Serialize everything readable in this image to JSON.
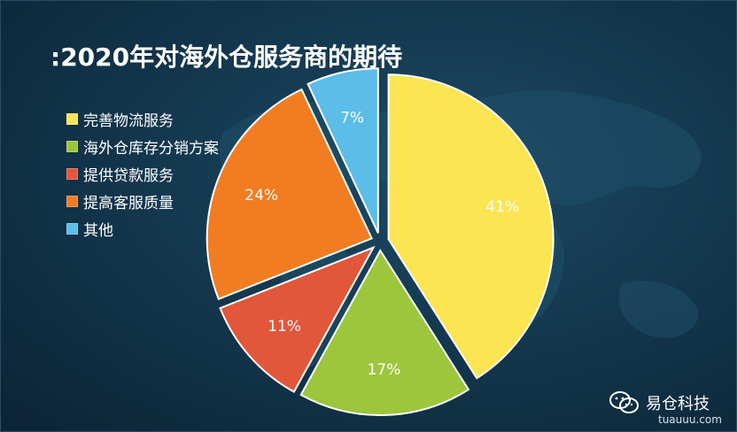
{
  "chart_data": {
    "type": "pie",
    "title": ":2020年对海外仓服务商的期待",
    "legend_position": "left",
    "slices": [
      {
        "label": "完善物流服务",
        "value": 41,
        "value_label": "41%",
        "color": "#fce552"
      },
      {
        "label": "海外仓库存分销方案",
        "value": 17,
        "value_label": "17%",
        "color": "#9cc63b"
      },
      {
        "label": "提供贷款服务",
        "value": 11,
        "value_label": "11%",
        "color": "#e2573a"
      },
      {
        "label": "提高客服质量",
        "value": 24,
        "value_label": "24%",
        "color": "#f27c21"
      },
      {
        "label": "其他",
        "value": 7,
        "value_label": "7%",
        "color": "#5bbde8"
      }
    ]
  },
  "watermark": {
    "brand": "易仓科技",
    "url": "tuauuu.com",
    "icon": "wechat-icon"
  }
}
